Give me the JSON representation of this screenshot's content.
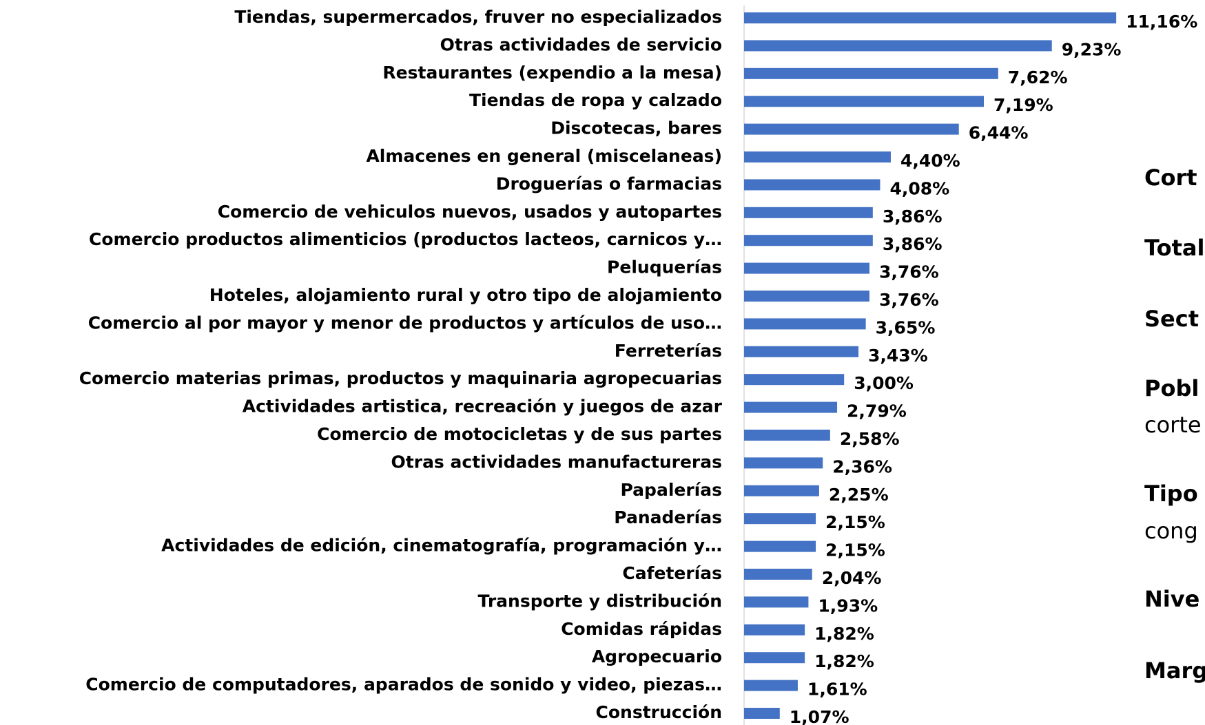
{
  "chart_data": {
    "type": "bar",
    "orientation": "horizontal",
    "color": "#4472c4",
    "categories": [
      "Tiendas, supermercados, fruver no especializados",
      "Otras actividades de servicio",
      "Restaurantes (expendio a la mesa)",
      "Tiendas de ropa y calzado",
      "Discotecas, bares",
      "Almacenes en general (miscelaneas)",
      "Droguerías o farmacias",
      "Comercio de vehiculos nuevos, usados y autopartes",
      "Comercio productos alimenticios (productos lacteos, carnicos y…",
      "Peluquerías",
      "Hoteles, alojamiento rural y otro tipo de alojamiento",
      "Comercio al por mayor y menor de productos y artículos de uso…",
      "Ferreterías",
      "Comercio materias primas, productos y maquinaria agropecuarias",
      "Actividades artistica, recreación y juegos de azar",
      "Comercio de motocicletas y de sus partes",
      "Otras actividades manufactureras",
      "Papalerías",
      "Panaderías",
      "Actividades de edición, cinematografía, programación y…",
      "Cafeterías",
      "Transporte y distribución",
      "Comidas rápidas",
      "Agropecuario",
      "Comercio de computadores, aparados de sonido y video, piezas…",
      "Construcción"
    ],
    "values": [
      11.16,
      9.23,
      7.62,
      7.19,
      6.44,
      4.4,
      4.08,
      3.86,
      3.86,
      3.76,
      3.76,
      3.65,
      3.43,
      3.0,
      2.79,
      2.58,
      2.36,
      2.25,
      2.15,
      2.15,
      2.04,
      1.93,
      1.82,
      1.82,
      1.61,
      1.07
    ],
    "value_labels": [
      "11,16%",
      "9,23%",
      "7,62%",
      "7,19%",
      "6,44%",
      "4,40%",
      "4,08%",
      "3,86%",
      "3,86%",
      "3,76%",
      "3,76%",
      "3,65%",
      "3,43%",
      "3,00%",
      "2,79%",
      "2,58%",
      "2,36%",
      "2,25%",
      "2,15%",
      "2,15%",
      "2,04%",
      "1,93%",
      "1,82%",
      "1,82%",
      "1,61%",
      "1,07%"
    ]
  },
  "side_panel": [
    {
      "text": "Cort",
      "bold": true
    },
    {
      "text": "Total",
      "bold": true
    },
    {
      "text": "Sect",
      "bold": true
    },
    {
      "text": "Pobl",
      "bold": true
    },
    {
      "text": "corte",
      "bold": false
    },
    {
      "text": "Tipo",
      "bold": true
    },
    {
      "text": "cong",
      "bold": false
    },
    {
      "text": "Nive",
      "bold": true
    },
    {
      "text": "Marg",
      "bold": true
    }
  ]
}
